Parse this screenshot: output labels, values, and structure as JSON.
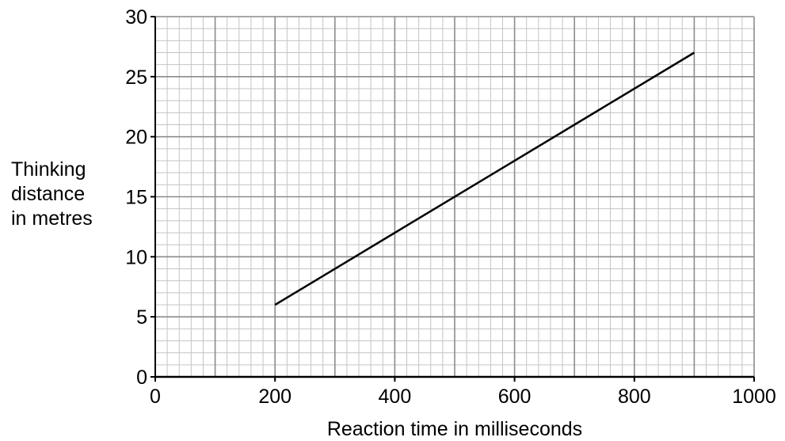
{
  "chart_data": {
    "type": "line",
    "title": "",
    "xlabel": "Reaction time in milliseconds",
    "ylabel_lines": [
      "Thinking",
      "distance",
      "in metres"
    ],
    "xlim": [
      0,
      1000
    ],
    "ylim": [
      0,
      30
    ],
    "x_ticks": [
      0,
      200,
      400,
      600,
      800,
      1000
    ],
    "y_ticks": [
      0,
      5,
      10,
      15,
      20,
      25,
      30
    ],
    "x_tick_labels": [
      "0",
      "200",
      "400",
      "600",
      "800",
      "1000"
    ],
    "y_tick_labels": [
      "0",
      "5",
      "10",
      "15",
      "20",
      "25",
      "30"
    ],
    "grid": true,
    "legend": "none",
    "series": [
      {
        "x": [
          200,
          900
        ],
        "y": [
          6,
          27
        ],
        "color": "#000000"
      }
    ],
    "colors": {
      "grid_major": "#8c8c8c",
      "grid_minor": "#c4c4c4",
      "axis": "#000000"
    }
  }
}
